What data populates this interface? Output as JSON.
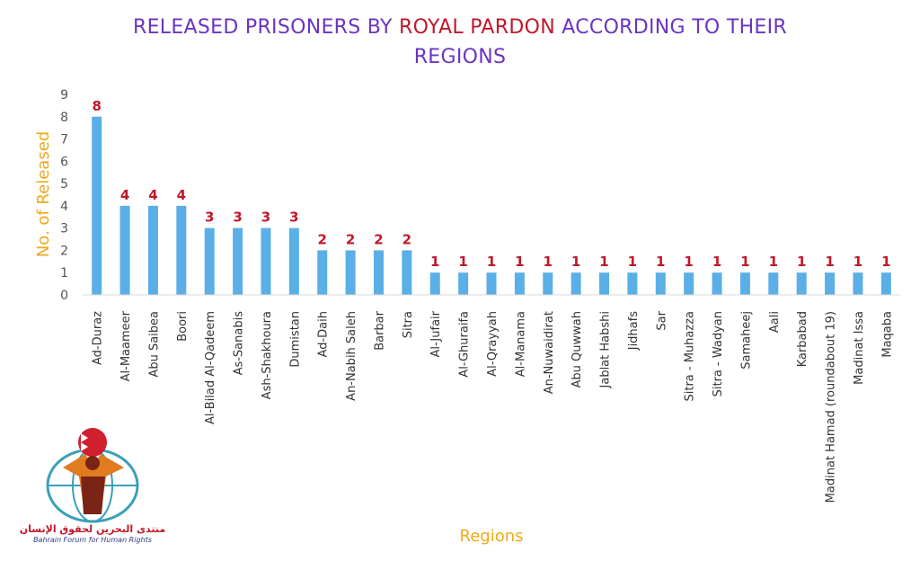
{
  "chart_data": {
    "type": "bar",
    "title_parts": [
      "RELEASED PRISONERS BY ",
      "ROYAL PARDON",
      " ACCORDING TO THEIR",
      "REGIONS"
    ],
    "xlabel": "Regions",
    "ylabel": "No. of Released",
    "ylim": [
      0,
      9
    ],
    "yticks": [
      "0",
      "1",
      "2",
      "3",
      "4",
      "5",
      "6",
      "7",
      "8",
      "9"
    ],
    "grid": false,
    "categories": [
      "Ad-Duraz",
      "Al-Maameer",
      "Abu Saibea",
      "Boori",
      "Al-Bilad Al-Qadeem",
      "As-Sanabis",
      "Ash-Shakhoura",
      "Dumistan",
      "Ad-Daih",
      "An-Nabih Saleh",
      "Barbar",
      "Sitra",
      "Al-Jufair",
      "Al-Ghuraifa",
      "Al-Qrayyah",
      "Al-Manama",
      "An-Nuwaidirat",
      "Abu Quwwah",
      "Jablat Habshi",
      "Jidhafs",
      "Sar",
      "Sitra - Muhazza",
      "Sitra - Wadyan",
      "Samaheej",
      "Aali",
      "Karbabad",
      "Madinat Hamad (roundabout 19)",
      "Madinat Issa",
      "Maqaba"
    ],
    "values": [
      8,
      4,
      4,
      4,
      3,
      3,
      3,
      3,
      2,
      2,
      2,
      2,
      1,
      1,
      1,
      1,
      1,
      1,
      1,
      1,
      1,
      1,
      1,
      1,
      1,
      1,
      1,
      1,
      1
    ],
    "data_labels": [
      "8",
      "4",
      "4",
      "4",
      "3",
      "3",
      "3",
      "3",
      "2",
      "2",
      "2",
      "2",
      "1",
      "1",
      "1",
      "1",
      "1",
      "1",
      "1",
      "1",
      "1",
      "1",
      "1",
      "1",
      "1",
      "1",
      "1",
      "1",
      "1"
    ]
  },
  "colors": {
    "bar": "#5aafe6",
    "title": "#6a35c2",
    "title_highlight": "#c0182a",
    "data_label": "#c0182a",
    "axis_label": "#f0a818"
  },
  "logo": {
    "arabic_text": "منتدى البحرين لحقوق الإنسان",
    "english_text": "Bahrain Forum for Human Rights"
  }
}
